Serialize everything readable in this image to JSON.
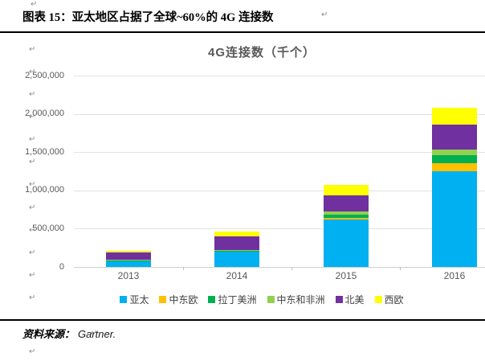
{
  "document": {
    "figure_title": "图表 15：亚太地区占据了全球~60%的 4G 连接数",
    "source_label": "资料来源：",
    "source_value": "Gartner.",
    "pilcrow": "↵"
  },
  "chart_data": {
    "type": "bar",
    "stacked": true,
    "title": "4G连接数（千个）",
    "categories": [
      "2013",
      "2014",
      "2015",
      "2016"
    ],
    "series": [
      {
        "name": "亚太",
        "color": "#00B0F0",
        "values": [
          80000,
          200000,
          615000,
          1250000
        ]
      },
      {
        "name": "中东欧",
        "color": "#FFC000",
        "values": [
          4000,
          5000,
          25000,
          100000
        ]
      },
      {
        "name": "拉丁美洲",
        "color": "#00B050",
        "values": [
          5000,
          8000,
          45000,
          115000
        ]
      },
      {
        "name": "中东和非洲",
        "color": "#92D050",
        "values": [
          3000,
          5000,
          35000,
          70000
        ]
      },
      {
        "name": "北美",
        "color": "#7030A0",
        "values": [
          100000,
          180000,
          220000,
          320000
        ]
      },
      {
        "name": "西欧",
        "color": "#FFFF00",
        "values": [
          20000,
          60000,
          130000,
          220000
        ]
      }
    ],
    "totals": [
      212000,
      458000,
      1070000,
      2075000
    ],
    "ylim": [
      0,
      2500000
    ],
    "ytick_step": 500000,
    "ytick_labels": [
      "0",
      "500,000",
      "1,000,000",
      "1,500,000",
      "2,000,000",
      "2,500,000"
    ],
    "grid": "horizontal",
    "legend_position": "bottom"
  }
}
